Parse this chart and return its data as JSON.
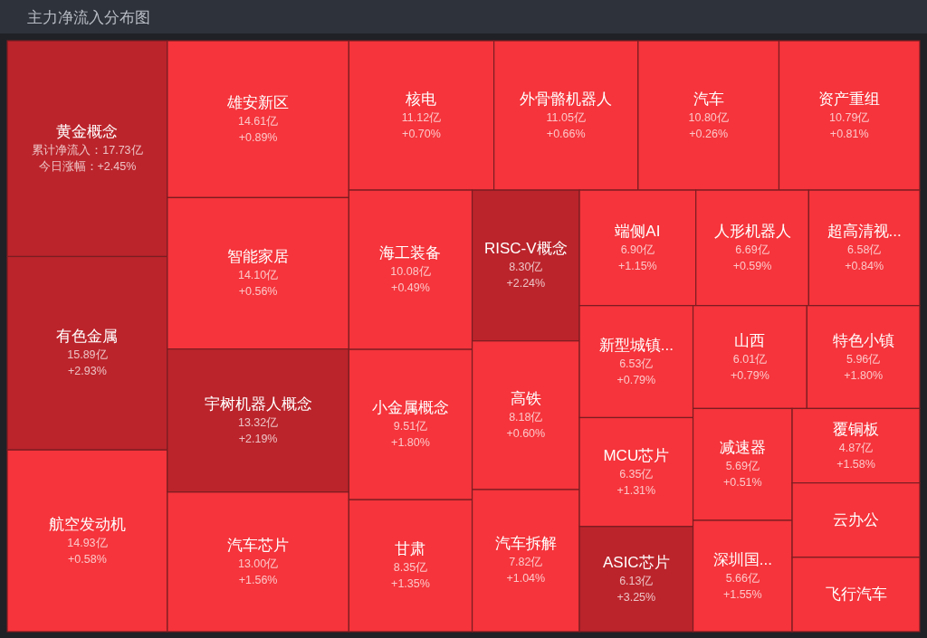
{
  "chart_data": {
    "type": "other",
    "title": "主力净流入分布图",
    "categories": [
      "黄金概念",
      "有色金属",
      "航空发动机",
      "雄安新区",
      "智能家居",
      "宇树机器人概念",
      "汽车芯片",
      "核电",
      "外骨骼机器人",
      "汽车",
      "资产重组",
      "海工装备",
      "小金属概念",
      "甘肃",
      "RISC-V概念",
      "高铁",
      "汽车拆解",
      "端侧AI",
      "人形机器人",
      "超高清视...",
      "新型城镇...",
      "MCU芯片",
      "ASIC芯片",
      "山西",
      "特色小镇",
      "减速器",
      "深圳国...",
      "覆铜板",
      "云办公",
      "飞行汽车"
    ],
    "values": [
      17.73,
      15.89,
      14.93,
      14.61,
      14.1,
      13.32,
      13.0,
      11.12,
      11.05,
      10.8,
      10.79,
      10.08,
      9.51,
      8.35,
      8.3,
      8.18,
      7.82,
      6.9,
      6.69,
      6.58,
      6.53,
      6.35,
      6.13,
      6.01,
      5.96,
      5.69,
      5.66,
      4.87,
      null,
      null
    ],
    "value_labels": [
      "累计净流入：17.73亿",
      "15.89亿",
      "14.93亿",
      "14.61亿",
      "14.10亿",
      "13.32亿",
      "13.00亿",
      "11.12亿",
      "11.05亿",
      "10.80亿",
      "10.79亿",
      "10.08亿",
      "9.51亿",
      "8.35亿",
      "8.30亿",
      "8.18亿",
      "7.82亿",
      "6.90亿",
      "6.69亿",
      "6.58亿",
      "6.53亿",
      "6.35亿",
      "6.13亿",
      "6.01亿",
      "5.96亿",
      "5.69亿",
      "5.66亿",
      "4.87亿",
      null,
      null
    ],
    "annotations": [
      "今日涨幅：+2.45%",
      "+2.93%",
      "+0.58%",
      "+0.89%",
      "+0.56%",
      "+2.19%",
      "+1.56%",
      "+0.70%",
      "+0.66%",
      "+0.26%",
      "+0.81%",
      "+0.49%",
      "+1.80%",
      "+1.35%",
      "+2.24%",
      "+0.60%",
      "+1.04%",
      "+1.15%",
      "+0.59%",
      "+0.84%",
      "+0.79%",
      "+1.31%",
      "+3.25%",
      "+0.79%",
      "+1.80%",
      "+0.51%",
      "+1.55%",
      "+1.58%"
    ],
    "colors": [
      "#bb242b",
      "#bb242b",
      "#f5343b",
      "#f5343b",
      "#f5343b",
      "#bb242b",
      "#f5343b",
      "#f5343b",
      "#f5343b",
      "#f5343b",
      "#f5343b",
      "#f5343b",
      "#f5343b",
      "#f5343b",
      "#bb242b",
      "#f5343b",
      "#f5343b",
      "#f5343b",
      "#f5343b",
      "#f5343b",
      "#f5343b",
      "#f5343b",
      "#bb242b",
      "#f5343b",
      "#f5343b",
      "#f5343b",
      "#f5343b",
      "#f5343b",
      "#f5343b",
      "#f5343b"
    ]
  }
}
